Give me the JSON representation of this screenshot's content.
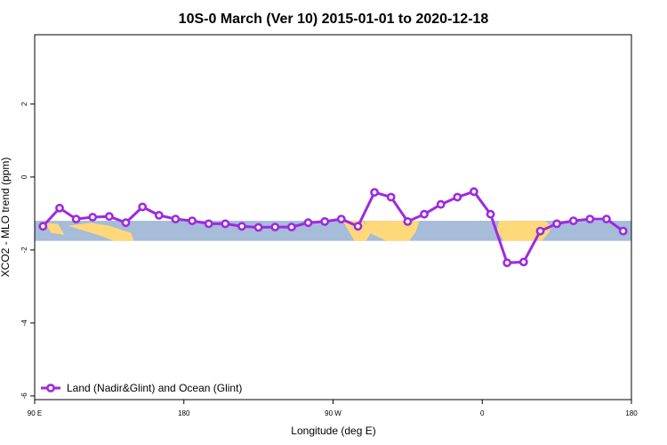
{
  "chart_data": {
    "type": "line",
    "title": "10S-0 March (Ver 10)   2015-01-01 to 2020-12-18",
    "xlabel": "Longitude (deg E)",
    "ylabel": "XCO2 - MLO trend (ppm)",
    "xlim": [
      90,
      450
    ],
    "ylim": [
      -6.1,
      3.9
    ],
    "x_ticks": [
      {
        "value": 90,
        "label": "90 E"
      },
      {
        "value": 180,
        "label": "180"
      },
      {
        "value": 270,
        "label": "90 W"
      },
      {
        "value": 360,
        "label": "0"
      },
      {
        "value": 450,
        "label": "180"
      }
    ],
    "y_ticks": [
      -6,
      -4,
      -2,
      0,
      2
    ],
    "grid": false,
    "legend_position": "bottom-left",
    "background_band": {
      "y_range": [
        -1.75,
        -1.2
      ],
      "ocean_color": "#a6bcd8",
      "land_color": "#ffd87a"
    },
    "series": [
      {
        "name": "Land (Nadir&Glint) and Ocean (Glint)",
        "color": "#9d2ae0",
        "x": [
          95,
          105,
          115,
          125,
          135,
          145,
          155,
          165,
          175,
          185,
          195,
          205,
          215,
          225,
          235,
          245,
          255,
          265,
          275,
          285,
          295,
          305,
          315,
          325,
          335,
          345,
          355,
          365,
          375,
          385,
          395,
          405,
          415,
          425,
          435,
          445
        ],
        "y": [
          -1.35,
          -0.85,
          -1.15,
          -1.1,
          -1.08,
          -1.25,
          -0.82,
          -1.05,
          -1.15,
          -1.2,
          -1.28,
          -1.28,
          -1.35,
          -1.38,
          -1.37,
          -1.37,
          -1.25,
          -1.22,
          -1.15,
          -1.35,
          -0.42,
          -0.55,
          -1.22,
          -1.02,
          -0.75,
          -0.55,
          -0.4,
          -1.02,
          -2.35,
          -2.33,
          -1.48,
          -1.28,
          -1.2,
          -1.15,
          -1.15,
          -1.48
        ]
      }
    ]
  }
}
